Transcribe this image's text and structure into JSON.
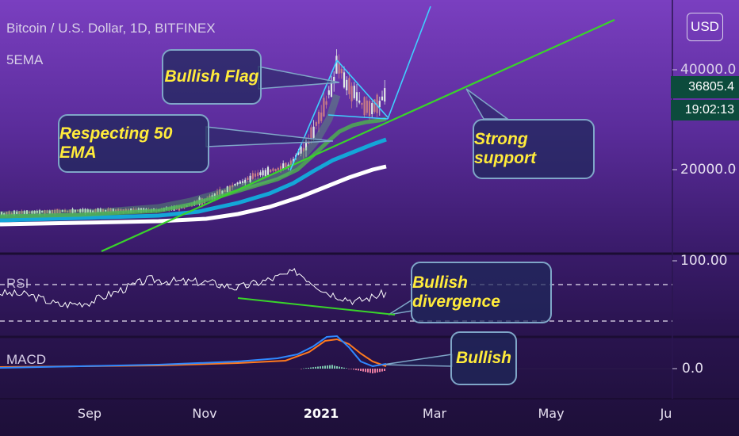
{
  "header": {
    "symbol_title": "Bitcoin / U.S. Dollar, 1D, BITFINEX",
    "indicator": "5EMA"
  },
  "currency_button": "USD",
  "price_scale": {
    "label_40000": "40000.0",
    "label_20000": "20000.0",
    "current_price": "36805.4",
    "countdown": "19:02:13"
  },
  "rsi_panel": {
    "name": "RSI",
    "scale_label": "100.00"
  },
  "macd_panel": {
    "name": "MACD",
    "scale_label": "0.0"
  },
  "x_axis": {
    "ticks": [
      {
        "label": "Sep",
        "bold": false
      },
      {
        "label": "Nov",
        "bold": false
      },
      {
        "label": "2021",
        "bold": true
      },
      {
        "label": "Mar",
        "bold": false
      },
      {
        "label": "May",
        "bold": false
      },
      {
        "label": "Ju",
        "bold": false
      }
    ]
  },
  "annotations": {
    "bullish_flag": "Bullish Flag",
    "respecting_50_ema": "Respecting 50 EMA",
    "strong_support": "Strong support",
    "bullish_divergence": "Bullish divergence",
    "bullish": "Bullish"
  },
  "colors": {
    "support_line": "#39d42a",
    "flag_lines": "#3fd0ff",
    "ema_green": "#4caf50",
    "ema_blue": "#14a6d8",
    "ema_white": "#ffffff",
    "macd_line": "#2f88ff",
    "signal_line": "#ff7a1f",
    "callout_text": "#ffeb3b",
    "price_tag": "#0c4b3c"
  },
  "chart_data": {
    "type": "line",
    "title": "Bitcoin / U.S. Dollar, 1D, BITFINEX",
    "x_ticks": [
      "Sep",
      "Nov",
      "2021",
      "Mar",
      "May",
      "Ju"
    ],
    "y_ticks": [
      "20000.0",
      "40000.0"
    ],
    "last_price": 36805.4,
    "price_series": [
      [
        "Aug 01",
        11600
      ],
      [
        "Aug 15",
        11800
      ],
      [
        "Sep 01",
        11700
      ],
      [
        "Sep 15",
        10800
      ],
      [
        "Oct 01",
        10700
      ],
      [
        "Oct 15",
        11500
      ],
      [
        "Nov 01",
        13700
      ],
      [
        "Nov 15",
        16000
      ],
      [
        "Dec 01",
        19000
      ],
      [
        "Dec 15",
        21500
      ],
      [
        "Dec 31",
        29000
      ],
      [
        "Jan 08",
        40500
      ],
      [
        "Jan 15",
        36000
      ],
      [
        "Jan 22",
        32000
      ],
      [
        "Jan 29",
        34000
      ],
      [
        "Feb 03",
        36805
      ]
    ],
    "rsi": {
      "name": "RSI",
      "levels": [
        70,
        30
      ],
      "values": [
        [
          "Aug 01",
          55
        ],
        [
          "Aug 20",
          52
        ],
        [
          "Sep 05",
          38
        ],
        [
          "Sep 20",
          42
        ],
        [
          "Oct 10",
          58
        ],
        [
          "Oct 25",
          74
        ],
        [
          "Nov 10",
          71
        ],
        [
          "Nov 25",
          70
        ],
        [
          "Dec 10",
          62
        ],
        [
          "Dec 20",
          73
        ],
        [
          "Jan 05",
          85
        ],
        [
          "Jan 15",
          56
        ],
        [
          "Jan 25",
          43
        ],
        [
          "Feb 03",
          55
        ]
      ]
    },
    "macd": {
      "name": "MACD",
      "zero_label": "0.0",
      "macd_line": [
        [
          "Aug 01",
          0
        ],
        [
          "Nov 15",
          0.15
        ],
        [
          "Dec 25",
          0.6
        ],
        [
          "Jan 08",
          1.6
        ],
        [
          "Jan 25",
          0.3
        ],
        [
          "Feb 03",
          0.05
        ]
      ],
      "signal_line": [
        [
          "Aug 01",
          0
        ],
        [
          "Nov 15",
          0.12
        ],
        [
          "Dec 25",
          0.45
        ],
        [
          "Jan 12",
          1.35
        ],
        [
          "Jan 28",
          0.5
        ],
        [
          "Feb 03",
          0.05
        ]
      ]
    }
  }
}
